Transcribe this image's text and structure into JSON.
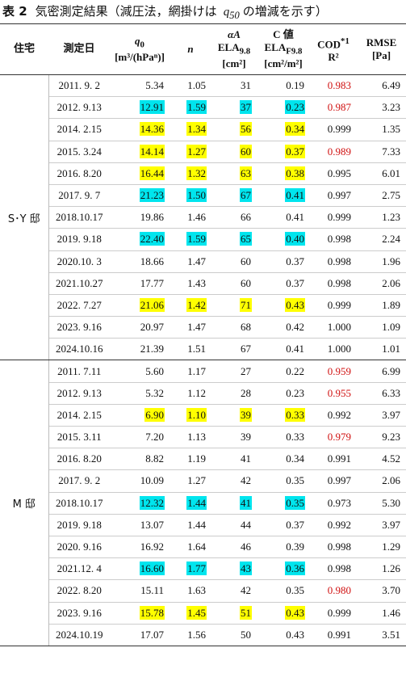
{
  "title": {
    "label": "表 2",
    "text1": "気密測定結果（減圧法，網掛けは",
    "var": "q",
    "sub": "50",
    "text2": "の増減を示す）"
  },
  "header": {
    "house": "住宅",
    "date": "測定日",
    "q0": {
      "main": "q",
      "sub": "0",
      "unit": "[m³/(hPaⁿ)]"
    },
    "n": "n",
    "ela": {
      "top": "αA",
      "main": "ELA",
      "sub": "9.8",
      "unit": "[cm²]"
    },
    "c": {
      "top": "C 値",
      "main": "ELA",
      "sub": "F9.8",
      "unit": "[cm²/m²]"
    },
    "cod": {
      "main": "COD",
      "sup": "*1",
      "r": "R²"
    },
    "rmse": {
      "main": "RMSE",
      "unit": "[Pa]"
    }
  },
  "groups": [
    {
      "house": "S･Y 邸",
      "rows": [
        {
          "date": "2011. 9. 2",
          "q0": "5.34",
          "n": "1.05",
          "ela": "31",
          "c": "0.19",
          "cod": "0.983",
          "rmse": "6.49",
          "cod_color": "#d01010"
        },
        {
          "date": "2012. 9.13",
          "q0": "12.91",
          "n": "1.59",
          "ela": "37",
          "c": "0.23",
          "cod": "0.987",
          "rmse": "3.23",
          "shade": "#00e5ee",
          "cod_color": "#d01010"
        },
        {
          "date": "2014. 2.15",
          "q0": "14.36",
          "n": "1.34",
          "ela": "56",
          "c": "0.34",
          "cod": "0.999",
          "rmse": "1.35",
          "shade": "#ffff00"
        },
        {
          "date": "2015. 3.24",
          "q0": "14.14",
          "n": "1.27",
          "ela": "60",
          "c": "0.37",
          "cod": "0.989",
          "rmse": "7.33",
          "shade": "#ffff00",
          "cod_color": "#d01010"
        },
        {
          "date": "2016. 8.20",
          "q0": "16.44",
          "n": "1.32",
          "ela": "63",
          "c": "0.38",
          "cod": "0.995",
          "rmse": "6.01",
          "shade": "#ffff00"
        },
        {
          "date": "2017. 9. 7",
          "q0": "21.23",
          "n": "1.50",
          "ela": "67",
          "c": "0.41",
          "cod": "0.997",
          "rmse": "2.75",
          "shade": "#00e5ee"
        },
        {
          "date": "2018.10.17",
          "q0": "19.86",
          "n": "1.46",
          "ela": "66",
          "c": "0.41",
          "cod": "0.999",
          "rmse": "1.23"
        },
        {
          "date": "2019. 9.18",
          "q0": "22.40",
          "n": "1.59",
          "ela": "65",
          "c": "0.40",
          "cod": "0.998",
          "rmse": "2.24",
          "shade": "#00e5ee"
        },
        {
          "date": "2020.10. 3",
          "q0": "18.66",
          "n": "1.47",
          "ela": "60",
          "c": "0.37",
          "cod": "0.998",
          "rmse": "1.96"
        },
        {
          "date": "2021.10.27",
          "q0": "17.77",
          "n": "1.43",
          "ela": "60",
          "c": "0.37",
          "cod": "0.998",
          "rmse": "2.06"
        },
        {
          "date": "2022. 7.27",
          "q0": "21.06",
          "n": "1.42",
          "ela": "71",
          "c": "0.43",
          "cod": "0.999",
          "rmse": "1.89",
          "shade": "#ffff00"
        },
        {
          "date": "2023. 9.16",
          "q0": "20.97",
          "n": "1.47",
          "ela": "68",
          "c": "0.42",
          "cod": "1.000",
          "rmse": "1.09"
        },
        {
          "date": "2024.10.16",
          "q0": "21.39",
          "n": "1.51",
          "ela": "67",
          "c": "0.41",
          "cod": "1.000",
          "rmse": "1.01"
        }
      ]
    },
    {
      "house": "M 邸",
      "rows": [
        {
          "date": "2011. 7.11",
          "q0": "5.60",
          "n": "1.17",
          "ela": "27",
          "c": "0.22",
          "cod": "0.959",
          "rmse": "6.99",
          "cod_color": "#d01010"
        },
        {
          "date": "2012. 9.13",
          "q0": "5.32",
          "n": "1.12",
          "ela": "28",
          "c": "0.23",
          "cod": "0.955",
          "rmse": "6.33",
          "cod_color": "#d01010"
        },
        {
          "date": "2014. 2.15",
          "q0": "6.90",
          "n": "1.10",
          "ela": "39",
          "c": "0.33",
          "cod": "0.992",
          "rmse": "3.97",
          "shade": "#ffff00"
        },
        {
          "date": "2015. 3.11",
          "q0": "7.20",
          "n": "1.13",
          "ela": "39",
          "c": "0.33",
          "cod": "0.979",
          "rmse": "9.23",
          "cod_color": "#d01010"
        },
        {
          "date": "2016. 8.20",
          "q0": "8.82",
          "n": "1.19",
          "ela": "41",
          "c": "0.34",
          "cod": "0.991",
          "rmse": "4.52"
        },
        {
          "date": "2017. 9. 2",
          "q0": "10.09",
          "n": "1.27",
          "ela": "42",
          "c": "0.35",
          "cod": "0.997",
          "rmse": "2.06"
        },
        {
          "date": "2018.10.17",
          "q0": "12.32",
          "n": "1.44",
          "ela": "41",
          "c": "0.35",
          "cod": "0.973",
          "rmse": "5.30",
          "shade": "#00e5ee"
        },
        {
          "date": "2019. 9.18",
          "q0": "13.07",
          "n": "1.44",
          "ela": "44",
          "c": "0.37",
          "cod": "0.992",
          "rmse": "3.97"
        },
        {
          "date": "2020. 9.16",
          "q0": "16.92",
          "n": "1.64",
          "ela": "46",
          "c": "0.39",
          "cod": "0.998",
          "rmse": "1.29"
        },
        {
          "date": "2021.12. 4",
          "q0": "16.60",
          "n": "1.77",
          "ela": "43",
          "c": "0.36",
          "cod": "0.998",
          "rmse": "1.26",
          "shade": "#00e5ee"
        },
        {
          "date": "2022. 8.20",
          "q0": "15.11",
          "n": "1.63",
          "ela": "42",
          "c": "0.35",
          "cod": "0.980",
          "rmse": "3.70",
          "cod_color": "#d01010"
        },
        {
          "date": "2023. 9.16",
          "q0": "15.78",
          "n": "1.45",
          "ela": "51",
          "c": "0.43",
          "cod": "0.999",
          "rmse": "1.46",
          "shade": "#ffff00"
        },
        {
          "date": "2024.10.19",
          "q0": "17.07",
          "n": "1.56",
          "ela": "50",
          "c": "0.43",
          "cod": "0.991",
          "rmse": "3.51"
        }
      ]
    }
  ]
}
